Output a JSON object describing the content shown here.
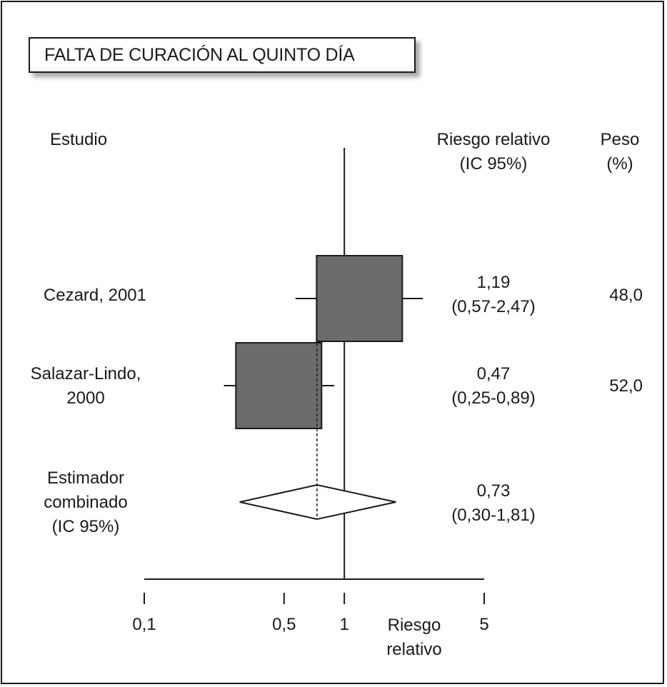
{
  "chart_data": {
    "type": "forest",
    "title": "FALTA DE CURACIÓN AL QUINTO DÍA",
    "columns": {
      "study": "Estudio",
      "rr_line1": "Riesgo relativo",
      "rr_line2": "(IC 95%)",
      "weight_line1": "Peso",
      "weight_line2": "(%)"
    },
    "x_axis": {
      "scale": "log",
      "range": [
        0.1,
        5
      ],
      "ticks": [
        {
          "value": 0.1,
          "label": "0,1"
        },
        {
          "value": 0.5,
          "label": "0,5"
        },
        {
          "value": 1,
          "label": "1"
        },
        {
          "value": 5,
          "label": "5"
        }
      ],
      "label_line1": "Riesgo",
      "label_line2": "relativo"
    },
    "studies": [
      {
        "name_line1": "Cezard, 2001",
        "name_line2": "",
        "rr": 1.19,
        "ci_low": 0.57,
        "ci_high": 2.47,
        "rr_label": "1,19",
        "ci_label": "(0,57-2,47)",
        "weight": 48.0,
        "weight_label": "48,0",
        "color": "#6b6b6b"
      },
      {
        "name_line1": "Salazar-Lindo,",
        "name_line2": "2000",
        "rr": 0.47,
        "ci_low": 0.25,
        "ci_high": 0.89,
        "rr_label": "0,47",
        "ci_label": "(0,25-0,89)",
        "weight": 52.0,
        "weight_label": "52,0",
        "color": "#6b6b6b"
      }
    ],
    "pooled": {
      "name_line1": "Estimador",
      "name_line2": "combinado",
      "name_line3": "(IC 95%)",
      "rr": 0.73,
      "ci_low": 0.3,
      "ci_high": 1.81,
      "rr_label": "0,73",
      "ci_label": "(0,30-1,81)"
    }
  }
}
